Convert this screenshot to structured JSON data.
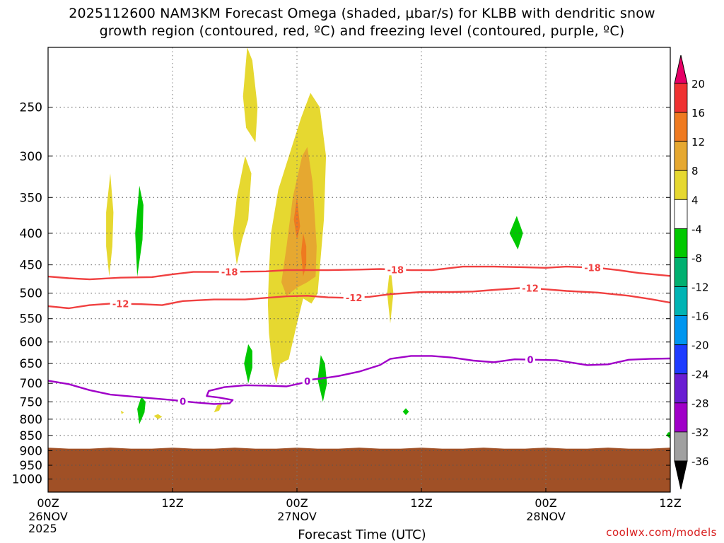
{
  "title_line1": "2025112600 NAM3KM Forecast Omega (shaded, μbar/s) for KLBB with dendritic snow",
  "title_line2": "growth region (contoured, red, ºC) and freezing level (contoured, purple, ºC)",
  "credit": "coolwx.com/models",
  "chart_data": {
    "type": "time-height cross section",
    "xlabel": "Forecast Time (UTC)",
    "x_range_hours": [
      0,
      60
    ],
    "x_ticks": [
      {
        "hour": 0,
        "label": "00Z",
        "date": "26NOV"
      },
      {
        "hour": 12,
        "label": "12Z",
        "date": ""
      },
      {
        "hour": 24,
        "label": "00Z",
        "date": "27NOV"
      },
      {
        "hour": 36,
        "label": "12Z",
        "date": ""
      },
      {
        "hour": 48,
        "label": "00Z",
        "date": "28NOV"
      },
      {
        "hour": 60,
        "label": "12Z",
        "date": ""
      }
    ],
    "year_label": "2025",
    "y_ticks_hPa": [
      250,
      300,
      350,
      400,
      450,
      500,
      550,
      600,
      650,
      700,
      750,
      800,
      850,
      900,
      950,
      1000
    ],
    "y_range_hPa": [
      200,
      1050
    ],
    "terrain_top_hPa": 893,
    "colorbar": {
      "levels": [
        "20",
        "16",
        "12",
        "8",
        "4",
        "-4",
        "-8",
        "-12",
        "-16",
        "-20",
        "-24",
        "-28",
        "-32",
        "-36"
      ],
      "colors": [
        "#e60066",
        "#f03232",
        "#ef7a20",
        "#e6a830",
        "#e6d830",
        "#ffffff",
        "#00c800",
        "#00b070",
        "#00b4b4",
        "#0096f0",
        "#1e3cff",
        "#6a1ed2",
        "#a000c8",
        "#a0a0a0",
        "#000000"
      ]
    },
    "dgz_contours": [
      {
        "value": -18,
        "label": "-18",
        "color": "#f04040",
        "label_hours": [
          17.5,
          33.5,
          52.5
        ],
        "points": [
          [
            0,
            470
          ],
          [
            2,
            473
          ],
          [
            4,
            475
          ],
          [
            7,
            472
          ],
          [
            10,
            471
          ],
          [
            12,
            466
          ],
          [
            14,
            462
          ],
          [
            17,
            462
          ],
          [
            21,
            461
          ],
          [
            23,
            459
          ],
          [
            27,
            459
          ],
          [
            30,
            458
          ],
          [
            32,
            457
          ],
          [
            35,
            459
          ],
          [
            37,
            459
          ],
          [
            40,
            453
          ],
          [
            43,
            453
          ],
          [
            46,
            454
          ],
          [
            48,
            455
          ],
          [
            50,
            453
          ],
          [
            53,
            455
          ],
          [
            55,
            459
          ],
          [
            57,
            464
          ],
          [
            60,
            469
          ]
        ]
      },
      {
        "value": -12,
        "label": "-12",
        "color": "#f04040",
        "label_hours": [
          7,
          29.5,
          46.5
        ],
        "points": [
          [
            0,
            525
          ],
          [
            2,
            529
          ],
          [
            4,
            523
          ],
          [
            6,
            520
          ],
          [
            9,
            521
          ],
          [
            11,
            523
          ],
          [
            13,
            515
          ],
          [
            16,
            512
          ],
          [
            19,
            512
          ],
          [
            21,
            509
          ],
          [
            23,
            506
          ],
          [
            25,
            505
          ],
          [
            27,
            508
          ],
          [
            29,
            509
          ],
          [
            31,
            507
          ],
          [
            33,
            502
          ],
          [
            36,
            498
          ],
          [
            39,
            498
          ],
          [
            41,
            497
          ],
          [
            43,
            494
          ],
          [
            46,
            490
          ],
          [
            48,
            493
          ],
          [
            50,
            496
          ],
          [
            53,
            499
          ],
          [
            56,
            505
          ],
          [
            58,
            511
          ],
          [
            60,
            518
          ]
        ]
      }
    ],
    "freezing_contours": [
      {
        "value": 0,
        "label": "0",
        "color": "#a000c8",
        "label_hours": [
          13,
          25,
          46.5
        ],
        "points": [
          [
            0,
            693
          ],
          [
            2,
            702
          ],
          [
            4,
            718
          ],
          [
            6,
            730
          ],
          [
            8,
            735
          ],
          [
            10,
            740
          ],
          [
            12,
            745
          ],
          [
            14,
            751
          ],
          [
            16,
            756
          ],
          [
            17.5,
            754
          ],
          [
            17.8,
            745
          ],
          [
            16.5,
            738
          ],
          [
            15.3,
            734
          ],
          [
            15.5,
            720
          ],
          [
            17,
            710
          ],
          [
            19,
            705
          ],
          [
            21,
            706
          ],
          [
            23,
            708
          ],
          [
            24.5,
            699
          ],
          [
            25.5,
            690
          ],
          [
            27,
            685
          ],
          [
            28,
            681
          ],
          [
            30,
            670
          ],
          [
            32,
            654
          ],
          [
            33,
            639
          ],
          [
            35,
            632
          ],
          [
            37,
            632
          ],
          [
            39,
            636
          ],
          [
            41,
            643
          ],
          [
            43,
            647
          ],
          [
            45,
            640
          ],
          [
            47,
            641
          ],
          [
            49,
            642
          ],
          [
            51,
            650
          ],
          [
            52,
            654
          ],
          [
            54,
            652
          ],
          [
            56,
            641
          ],
          [
            58,
            639
          ],
          [
            60,
            638
          ]
        ]
      }
    ],
    "omega_regions": [
      {
        "level": "4",
        "color": "#e6d830",
        "points": [
          [
            24.4,
            260
          ],
          [
            23.5,
            290
          ],
          [
            22.2,
            340
          ],
          [
            21.5,
            400
          ],
          [
            21.3,
            460
          ],
          [
            21.2,
            520
          ],
          [
            21.3,
            580
          ],
          [
            21.6,
            650
          ],
          [
            22.0,
            700
          ],
          [
            22.4,
            650
          ],
          [
            23.2,
            640
          ],
          [
            24.0,
            560
          ],
          [
            24.6,
            510
          ],
          [
            25.4,
            520
          ],
          [
            26.0,
            500
          ],
          [
            26.6,
            380
          ],
          [
            26.8,
            300
          ],
          [
            26.2,
            250
          ],
          [
            25.3,
            237
          ]
        ]
      },
      {
        "level": "8",
        "color": "#e6a830",
        "points": [
          [
            24.5,
            300
          ],
          [
            23.6,
            350
          ],
          [
            23.0,
            420
          ],
          [
            22.5,
            480
          ],
          [
            23.0,
            505
          ],
          [
            24.0,
            490
          ],
          [
            25.0,
            480
          ],
          [
            25.8,
            470
          ],
          [
            25.9,
            420
          ],
          [
            25.5,
            330
          ],
          [
            25.0,
            290
          ]
        ]
      },
      {
        "level": "12",
        "color": "#ef7a20",
        "points": [
          [
            24.0,
            350
          ],
          [
            23.7,
            380
          ],
          [
            24.0,
            410
          ],
          [
            24.3,
            390
          ]
        ]
      },
      {
        "level": "12",
        "color": "#ef7a20",
        "points": [
          [
            24.6,
            400
          ],
          [
            24.4,
            430
          ],
          [
            24.6,
            470
          ],
          [
            24.9,
            450
          ],
          [
            24.9,
            420
          ]
        ]
      },
      {
        "level": "4",
        "color": "#e6d830",
        "points": [
          [
            19.2,
            200
          ],
          [
            18.8,
            240
          ],
          [
            19.1,
            270
          ],
          [
            20.0,
            285
          ],
          [
            20.2,
            250
          ],
          [
            19.7,
            210
          ]
        ]
      },
      {
        "level": "4",
        "color": "#e6d830",
        "points": [
          [
            19.0,
            300
          ],
          [
            18.2,
            350
          ],
          [
            17.8,
            400
          ],
          [
            18.2,
            450
          ],
          [
            18.7,
            410
          ],
          [
            19.3,
            380
          ],
          [
            19.6,
            320
          ]
        ]
      },
      {
        "level": "4",
        "color": "#e6d830",
        "points": [
          [
            6.0,
            320
          ],
          [
            5.6,
            370
          ],
          [
            5.6,
            420
          ],
          [
            5.9,
            470
          ],
          [
            6.2,
            420
          ],
          [
            6.3,
            370
          ]
        ]
      },
      {
        "level": "4",
        "color": "#e6d830",
        "points": [
          [
            33.0,
            450
          ],
          [
            32.7,
            500
          ],
          [
            33.0,
            560
          ],
          [
            33.3,
            500
          ]
        ]
      },
      {
        "level": "4",
        "color": "#e6d830",
        "points": [
          [
            16.3,
            760
          ],
          [
            16.0,
            780
          ],
          [
            16.5,
            775
          ],
          [
            16.8,
            755
          ]
        ]
      },
      {
        "level": "4",
        "color": "#e6d830",
        "points": [
          [
            10.2,
            790
          ],
          [
            10.6,
            800
          ],
          [
            11.0,
            793
          ],
          [
            10.6,
            785
          ]
        ]
      },
      {
        "level": "4",
        "color": "#e6d830",
        "points": [
          [
            7.0,
            775
          ],
          [
            7.1,
            785
          ],
          [
            7.3,
            780
          ]
        ]
      },
      {
        "level": "-4",
        "color": "#00c800",
        "points": [
          [
            8.8,
            335
          ],
          [
            8.4,
            400
          ],
          [
            8.6,
            470
          ],
          [
            9.1,
            410
          ],
          [
            9.2,
            360
          ]
        ]
      },
      {
        "level": "-4",
        "color": "#00c800",
        "points": [
          [
            19.3,
            605
          ],
          [
            18.9,
            650
          ],
          [
            19.3,
            700
          ],
          [
            19.7,
            660
          ],
          [
            19.7,
            620
          ]
        ]
      },
      {
        "level": "-4",
        "color": "#00c800",
        "points": [
          [
            26.3,
            630
          ],
          [
            26.0,
            690
          ],
          [
            26.5,
            750
          ],
          [
            26.9,
            700
          ],
          [
            26.7,
            650
          ]
        ]
      },
      {
        "level": "-4",
        "color": "#00c800",
        "points": [
          [
            45.2,
            375
          ],
          [
            44.5,
            400
          ],
          [
            45.3,
            425
          ],
          [
            45.8,
            400
          ]
        ]
      },
      {
        "level": "-4",
        "color": "#00c800",
        "points": [
          [
            9.0,
            735
          ],
          [
            8.6,
            770
          ],
          [
            8.8,
            815
          ],
          [
            9.3,
            780
          ],
          [
            9.4,
            750
          ]
        ]
      },
      {
        "level": "-4",
        "color": "#00c800",
        "points": [
          [
            34.5,
            768
          ],
          [
            34.2,
            778
          ],
          [
            34.5,
            788
          ],
          [
            34.8,
            778
          ]
        ]
      },
      {
        "level": "-4",
        "color": "#00c800",
        "points": [
          [
            59.8,
            840
          ],
          [
            59.6,
            850
          ],
          [
            60,
            860
          ],
          [
            60,
            840
          ]
        ]
      }
    ]
  }
}
